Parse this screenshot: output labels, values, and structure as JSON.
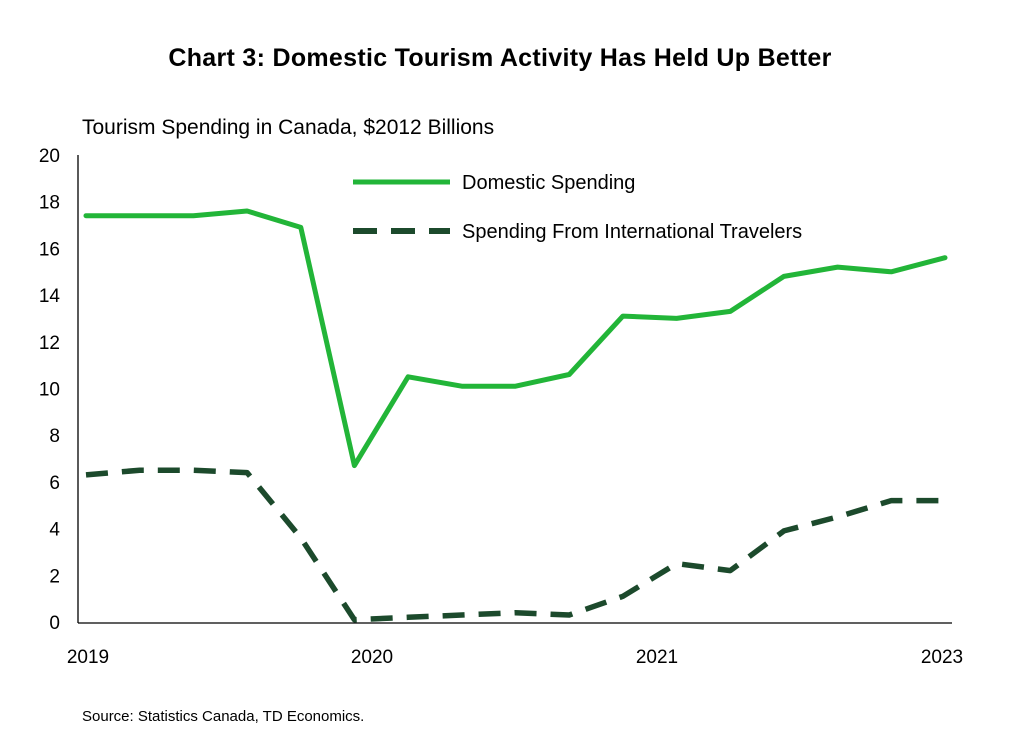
{
  "chart_data": {
    "type": "line",
    "title": "Chart 3: Domestic Tourism Activity Has Held Up Better",
    "ylabel": "Tourism Spending in Canada, $2012 Billions",
    "xlabel": "",
    "source": "Source: Statistics Canada, TD Economics.",
    "ylim": [
      0,
      20
    ],
    "yticks": [
      "0",
      "2",
      "4",
      "6",
      "8",
      "10",
      "12",
      "14",
      "16",
      "18",
      "20"
    ],
    "xticks": [
      "2019",
      "2020",
      "2021",
      "2023"
    ],
    "x": [
      0,
      1,
      2,
      3,
      4,
      5,
      6,
      7,
      8,
      9,
      10,
      11,
      12,
      13,
      14,
      15,
      16
    ],
    "series": [
      {
        "name": "Domestic Spending",
        "color": "#22b538",
        "style": "solid",
        "values": [
          17.4,
          17.4,
          17.4,
          17.6,
          16.9,
          6.7,
          10.5,
          10.1,
          10.1,
          10.6,
          13.1,
          13.0,
          13.3,
          14.8,
          15.2,
          15.0,
          15.6
        ]
      },
      {
        "name": "Spending From International Travelers",
        "color": "#1c4a2c",
        "style": "dashed",
        "values": [
          6.3,
          6.5,
          6.5,
          6.4,
          3.6,
          0.1,
          0.2,
          0.3,
          0.4,
          0.3,
          1.1,
          2.5,
          2.2,
          3.9,
          4.5,
          5.2,
          5.2
        ]
      }
    ]
  }
}
